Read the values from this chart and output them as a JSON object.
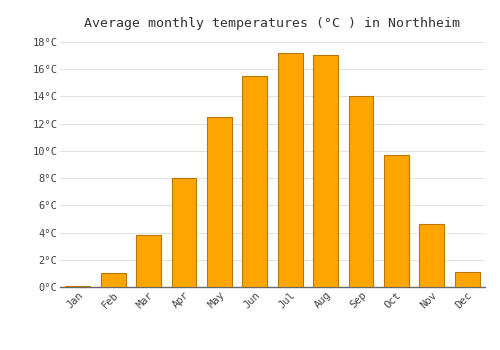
{
  "title": "Average monthly temperatures (°C ) in Northheim",
  "months": [
    "Jan",
    "Feb",
    "Mar",
    "Apr",
    "May",
    "Jun",
    "Jul",
    "Aug",
    "Sep",
    "Oct",
    "Nov",
    "Dec"
  ],
  "values": [
    0.1,
    1.0,
    3.8,
    8.0,
    12.5,
    15.5,
    17.2,
    17.0,
    14.0,
    9.7,
    4.6,
    1.1
  ],
  "bar_color": "#FFA500",
  "bar_edge_color": "#B87800",
  "background_color": "#FFFFFF",
  "grid_color": "#DDDDDD",
  "ylim": [
    0,
    18.5
  ],
  "yticks": [
    0,
    2,
    4,
    6,
    8,
    10,
    12,
    14,
    16,
    18
  ],
  "title_fontsize": 9.5,
  "tick_fontsize": 7.5,
  "tick_label_color": "#444444",
  "title_color": "#333333"
}
